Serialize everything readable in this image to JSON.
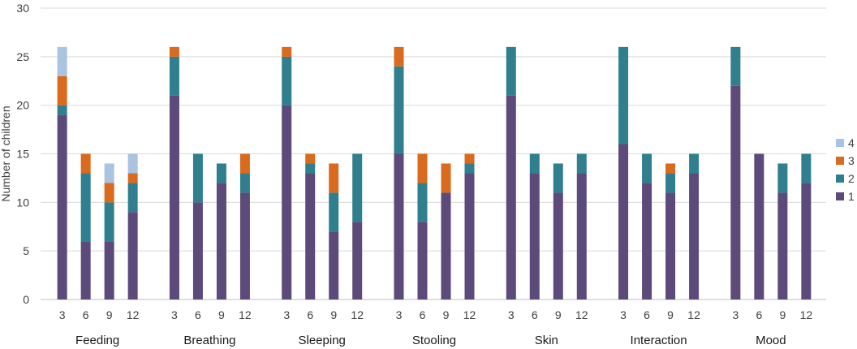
{
  "chart_data": {
    "type": "bar",
    "stacked": true,
    "title": "",
    "xlabel": "",
    "ylabel": "Number of children",
    "ylim": [
      0,
      30
    ],
    "yticks": [
      0,
      5,
      10,
      15,
      20,
      25,
      30
    ],
    "groups": [
      "Feeding",
      "Breathing",
      "Sleeping",
      "Stooling",
      "Skin",
      "Interaction",
      "Mood"
    ],
    "categories": [
      "3",
      "6",
      "9",
      "12"
    ],
    "series": [
      {
        "name": "1",
        "color": "#5b4a7a",
        "values": [
          [
            19,
            6,
            6,
            9
          ],
          [
            21,
            10,
            12,
            11
          ],
          [
            20,
            13,
            7,
            8
          ],
          [
            15,
            8,
            11,
            13
          ],
          [
            21,
            13,
            11,
            13
          ],
          [
            16,
            12,
            11,
            13
          ],
          [
            22,
            15,
            11,
            12
          ]
        ]
      },
      {
        "name": "2",
        "color": "#2f7f8e",
        "values": [
          [
            1,
            7,
            4,
            3
          ],
          [
            4,
            5,
            2,
            2
          ],
          [
            5,
            1,
            4,
            7
          ],
          [
            9,
            4,
            0,
            1
          ],
          [
            5,
            2,
            3,
            2
          ],
          [
            10,
            3,
            2,
            2
          ],
          [
            4,
            0,
            3,
            3
          ]
        ]
      },
      {
        "name": "3",
        "color": "#d96a1e",
        "values": [
          [
            3,
            2,
            2,
            1
          ],
          [
            1,
            0,
            0,
            2
          ],
          [
            1,
            1,
            3,
            0
          ],
          [
            2,
            3,
            3,
            1
          ],
          [
            0,
            0,
            0,
            0
          ],
          [
            0,
            0,
            1,
            0
          ],
          [
            0,
            0,
            0,
            0
          ]
        ]
      },
      {
        "name": "4",
        "color": "#a9c3e0",
        "values": [
          [
            3,
            0,
            2,
            2
          ],
          [
            0,
            0,
            0,
            0
          ],
          [
            0,
            0,
            0,
            0
          ],
          [
            0,
            0,
            0,
            0
          ],
          [
            0,
            0,
            0,
            0
          ],
          [
            0,
            0,
            0,
            0
          ],
          [
            0,
            0,
            0,
            0
          ]
        ]
      }
    ],
    "legend_order": [
      "4",
      "3",
      "2",
      "1"
    ],
    "legend_position": "right",
    "grid": true
  }
}
